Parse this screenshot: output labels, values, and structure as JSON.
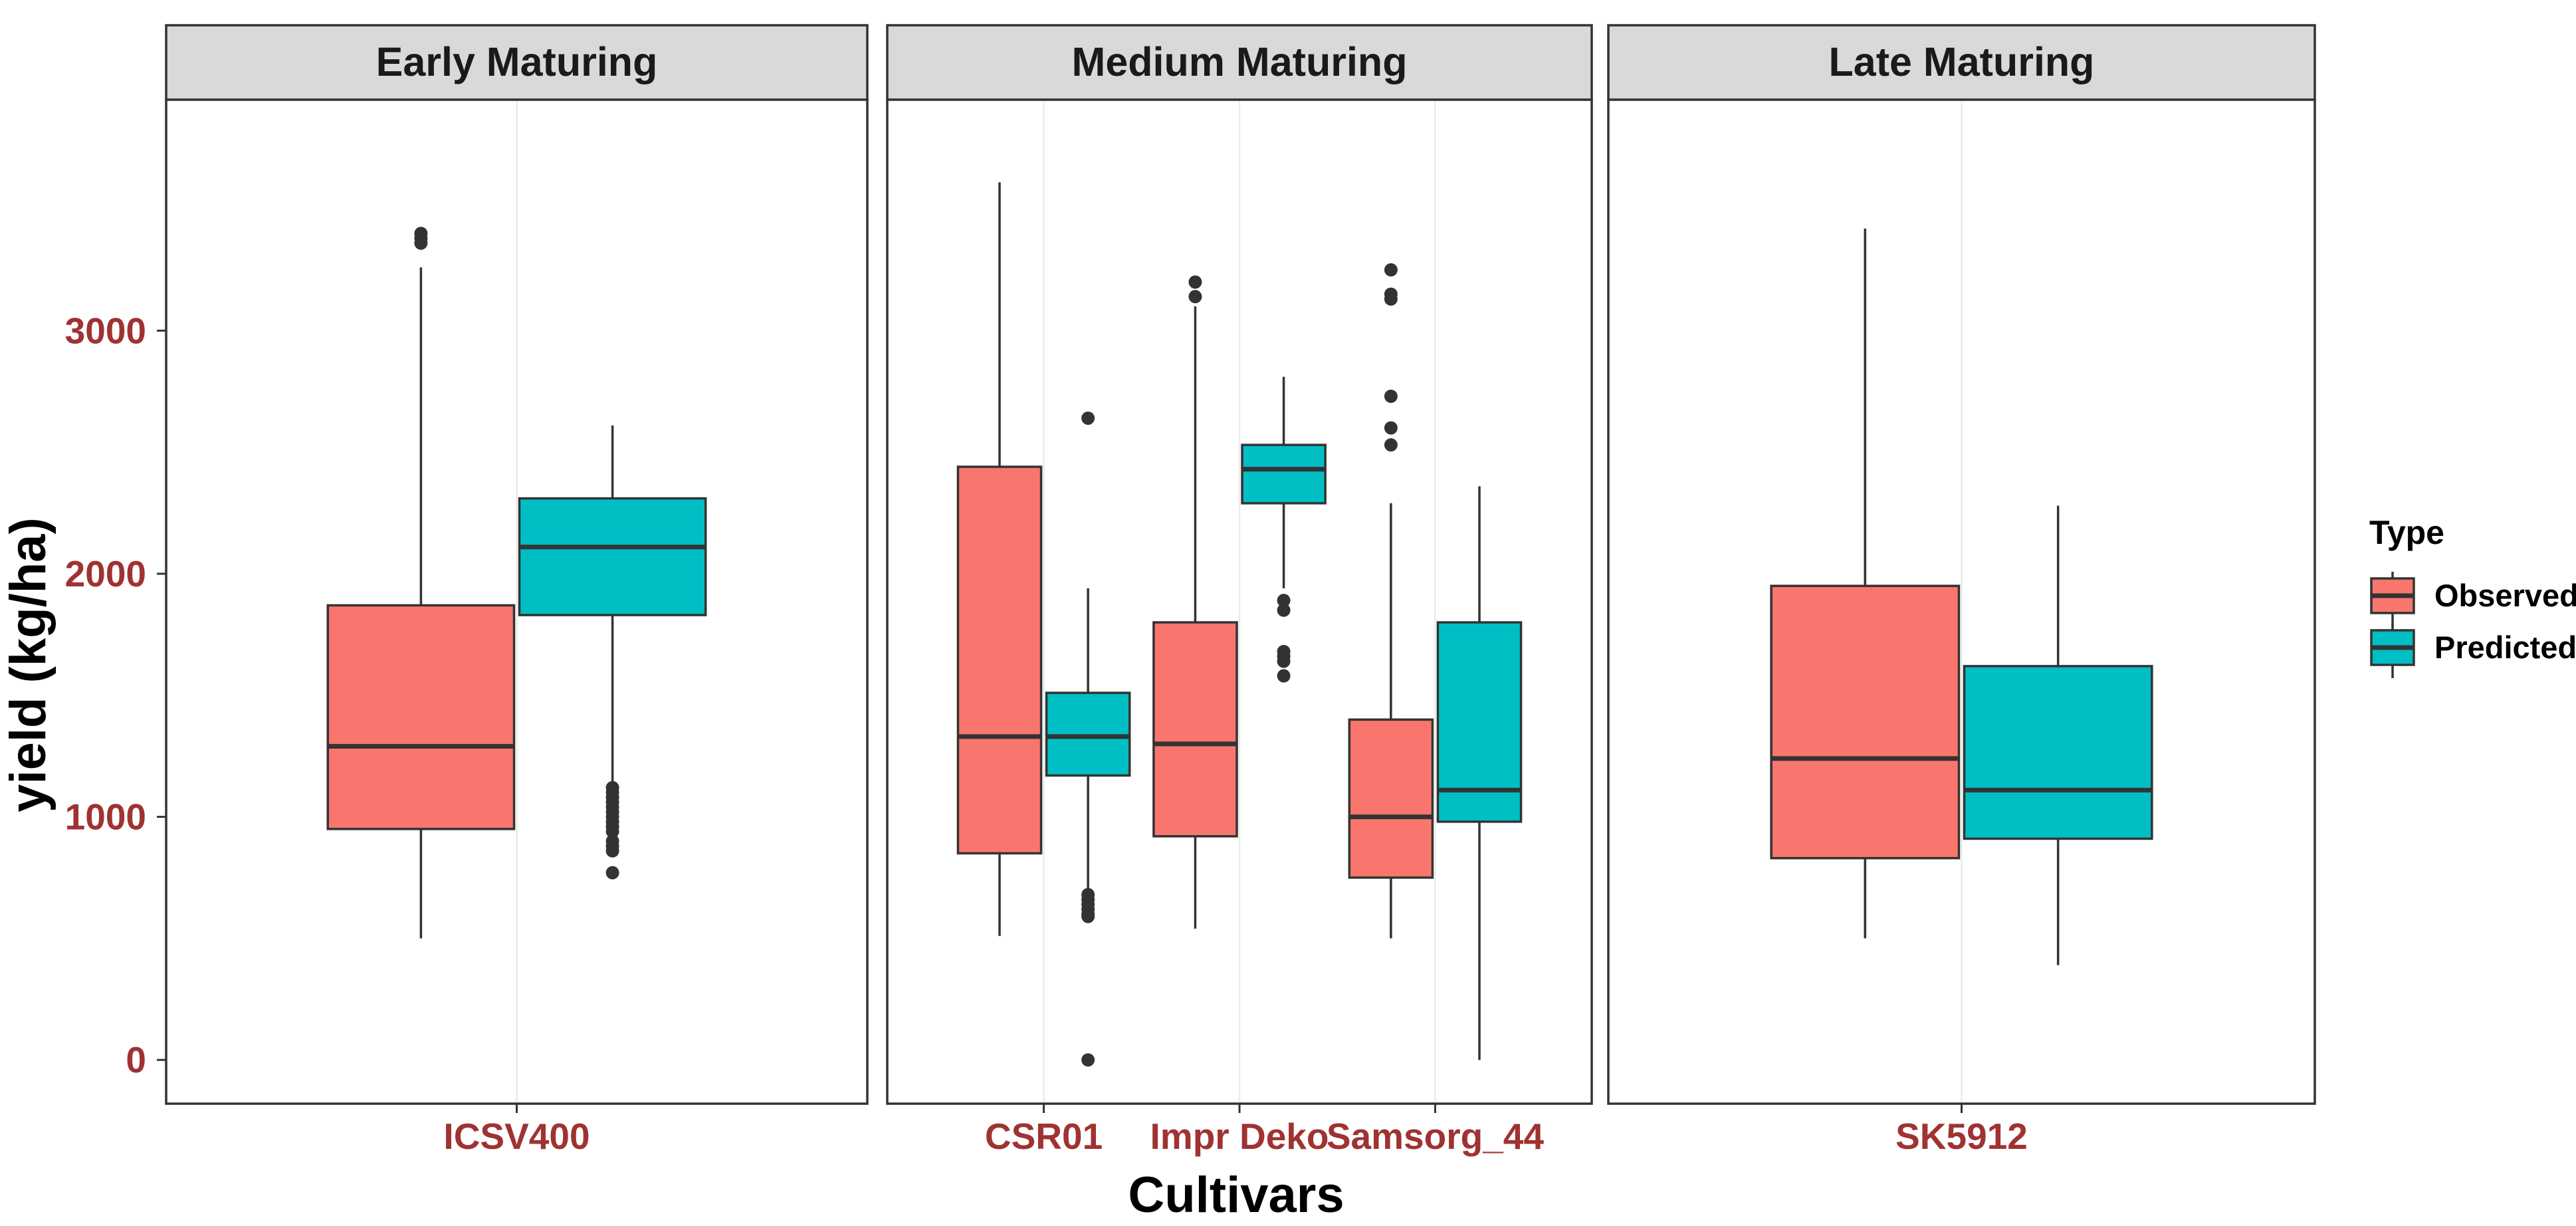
{
  "chart_data": {
    "type": "boxplot",
    "ylabel": "yield (kg/ha)",
    "xlabel": "Cultivars",
    "ylim": [
      -180,
      3950
    ],
    "y_ticks": [
      0,
      1000,
      2000,
      3000
    ],
    "y_tick_labels": [
      "0",
      "1000",
      "2000",
      "3000"
    ],
    "legend": {
      "title": "Type",
      "position": "right",
      "items": [
        {
          "label": "Observed",
          "color": "#F8766D"
        },
        {
          "label": "Predicted",
          "color": "#00BFC4"
        }
      ]
    },
    "facets": [
      {
        "label": "Early Maturing",
        "categories": [
          {
            "name": "ICSV400",
            "boxes": [
              {
                "type": "Observed",
                "min": 500,
                "q1": 950,
                "median": 1290,
                "q3": 1870,
                "max": 3260,
                "outliers": [
                  3360,
                  3380,
                  3400
                ]
              },
              {
                "type": "Predicted",
                "min": 1140,
                "q1": 1830,
                "median": 2110,
                "q3": 2310,
                "max": 2610,
                "outliers": [
                  1120,
                  1100,
                  1080,
                  1060,
                  1040,
                  1020,
                  1000,
                  980,
                  960,
                  940,
                  900,
                  880,
                  860,
                  770
                ]
              }
            ]
          }
        ]
      },
      {
        "label": "Medium Maturing",
        "categories": [
          {
            "name": "CSR01",
            "boxes": [
              {
                "type": "Observed",
                "min": 510,
                "q1": 850,
                "median": 1330,
                "q3": 2440,
                "max": 3610,
                "outliers": []
              },
              {
                "type": "Predicted",
                "min": 700,
                "q1": 1170,
                "median": 1330,
                "q3": 1510,
                "max": 1940,
                "outliers": [
                  2640,
                  680,
                  660,
                  640,
                  620,
                  600,
                  590,
                  0
                ]
              }
            ]
          },
          {
            "name": "Impr Deko",
            "boxes": [
              {
                "type": "Observed",
                "min": 540,
                "q1": 920,
                "median": 1300,
                "q3": 1800,
                "max": 3100,
                "outliers": [
                  3140,
                  3200
                ]
              },
              {
                "type": "Predicted",
                "min": 1940,
                "q1": 2290,
                "median": 2430,
                "q3": 2530,
                "max": 2810,
                "outliers": [
                  1890,
                  1850,
                  1680,
                  1660,
                  1640,
                  1580
                ]
              }
            ]
          },
          {
            "name": "Samsorg_44",
            "boxes": [
              {
                "type": "Observed",
                "min": 500,
                "q1": 750,
                "median": 1000,
                "q3": 1400,
                "max": 2290,
                "outliers": [
                  2530,
                  2600,
                  2730,
                  3130,
                  3150,
                  3250
                ]
              },
              {
                "type": "Predicted",
                "min": 0,
                "q1": 980,
                "median": 1110,
                "q3": 1800,
                "max": 2360,
                "outliers": []
              }
            ]
          }
        ]
      },
      {
        "label": "Late Maturing",
        "categories": [
          {
            "name": "SK5912",
            "boxes": [
              {
                "type": "Observed",
                "min": 500,
                "q1": 830,
                "median": 1240,
                "q3": 1950,
                "max": 3420,
                "outliers": []
              },
              {
                "type": "Predicted",
                "min": 390,
                "q1": 910,
                "median": 1110,
                "q3": 1620,
                "max": 2280,
                "outliers": []
              }
            ]
          }
        ]
      }
    ]
  }
}
